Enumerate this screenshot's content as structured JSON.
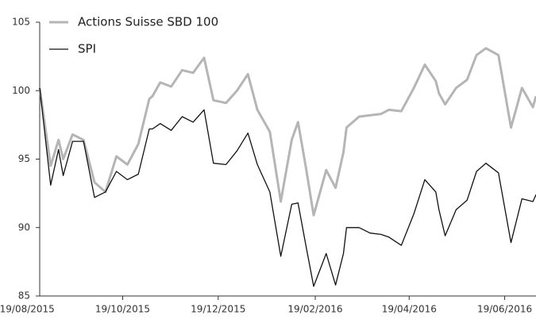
{
  "chart_data": {
    "type": "line",
    "x": [
      "2015-08-27",
      "2015-09-03",
      "2015-09-08",
      "2015-09-11",
      "2015-09-17",
      "2015-09-24",
      "2015-10-01",
      "2015-10-08",
      "2015-10-15",
      "2015-10-22",
      "2015-10-29",
      "2015-11-05",
      "2015-11-07",
      "2015-11-12",
      "2015-11-19",
      "2015-11-26",
      "2015-12-03",
      "2015-12-10",
      "2015-12-16",
      "2015-12-24",
      "2015-12-31",
      "2016-01-07",
      "2016-01-13",
      "2016-01-21",
      "2016-01-28",
      "2016-02-04",
      "2016-02-08",
      "2016-02-13",
      "2016-02-18",
      "2016-02-26",
      "2016-03-03",
      "2016-03-08",
      "2016-03-10",
      "2016-03-18",
      "2016-03-25",
      "2016-04-01",
      "2016-04-06",
      "2016-04-14",
      "2016-04-22",
      "2016-04-29",
      "2016-05-06",
      "2016-05-08",
      "2016-05-12",
      "2016-05-19",
      "2016-05-26",
      "2016-06-01",
      "2016-06-07",
      "2016-06-15",
      "2016-06-23",
      "2016-06-30",
      "2016-07-07",
      "2016-07-09"
    ],
    "series": [
      {
        "name": "Actions Suisse SBD 100",
        "color": "#b5b5b5",
        "values": [
          100.2,
          94.5,
          96.4,
          95.0,
          96.8,
          96.4,
          93.3,
          92.6,
          95.2,
          94.6,
          96.1,
          99.4,
          99.6,
          100.6,
          100.3,
          101.5,
          101.3,
          102.4,
          99.3,
          99.1,
          100.0,
          101.2,
          98.6,
          97.0,
          91.9,
          96.4,
          97.7,
          94.4,
          90.9,
          94.2,
          92.9,
          95.5,
          97.3,
          98.1,
          98.2,
          98.3,
          98.6,
          98.5,
          100.2,
          101.9,
          100.7,
          99.8,
          99.0,
          100.2,
          100.8,
          102.6,
          103.1,
          102.6,
          97.3,
          100.2,
          98.8,
          99.6
        ]
      },
      {
        "name": "SPI",
        "color": "#111111",
        "values": [
          100.2,
          93.1,
          95.7,
          93.8,
          96.3,
          96.3,
          92.2,
          92.6,
          94.1,
          93.5,
          93.9,
          97.2,
          97.2,
          97.6,
          97.1,
          98.1,
          97.7,
          98.6,
          94.7,
          94.6,
          95.6,
          96.9,
          94.6,
          92.6,
          87.9,
          91.7,
          91.8,
          88.7,
          85.7,
          88.1,
          85.8,
          88.1,
          90.0,
          90.0,
          89.6,
          89.5,
          89.3,
          88.7,
          91.0,
          93.5,
          92.6,
          91.3,
          89.4,
          91.3,
          92.0,
          94.1,
          94.7,
          94.0,
          88.9,
          92.1,
          91.9,
          92.4
        ]
      }
    ],
    "xlim": [
      "2015-08-27",
      "2016-07-09"
    ],
    "xticks": [
      {
        "value": "2015-08-19",
        "label": "19/08/2015"
      },
      {
        "value": "2015-10-19",
        "label": "19/10/2015"
      },
      {
        "value": "2015-12-19",
        "label": "19/12/2015"
      },
      {
        "value": "2016-02-19",
        "label": "19/02/2016"
      },
      {
        "value": "2016-04-19",
        "label": "19/04/2016"
      },
      {
        "value": "2016-06-19",
        "label": "19/06/2016"
      }
    ],
    "ylim": [
      85,
      105
    ],
    "yticks": [
      85,
      90,
      95,
      100,
      105
    ],
    "legend": "top-left"
  }
}
